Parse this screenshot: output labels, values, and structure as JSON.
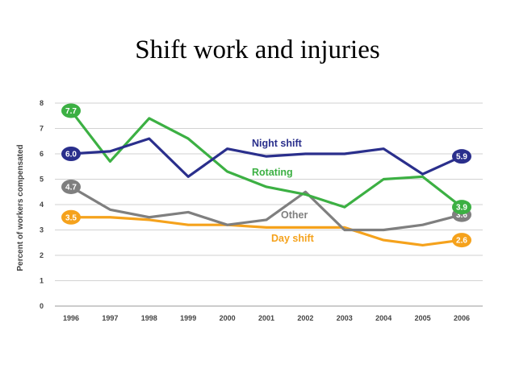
{
  "page": {
    "title": "Shift work and injuries"
  },
  "chart_data": {
    "type": "line",
    "title": "Shift work and injuries",
    "xlabel": "",
    "ylabel": "Percent of workers compensated",
    "ylim": [
      0,
      8
    ],
    "yticks": [
      "0",
      "1",
      "2",
      "3",
      "4",
      "5",
      "6",
      "7",
      "8"
    ],
    "categories": [
      "1996",
      "1997",
      "1998",
      "1999",
      "2000",
      "2001",
      "2002",
      "2003",
      "2004",
      "2005",
      "2006"
    ],
    "grid": true,
    "legend": "inline labels",
    "series": [
      {
        "name": "Night shift",
        "color": "#2a2f8c",
        "values": [
          6.0,
          6.1,
          6.6,
          5.1,
          6.2,
          5.9,
          6.0,
          6.0,
          6.2,
          5.2,
          5.9
        ],
        "start_label": "6.0",
        "end_label": "5.9"
      },
      {
        "name": "Rotating",
        "color": "#3cb043",
        "values": [
          7.7,
          5.7,
          7.4,
          6.6,
          5.3,
          4.7,
          4.4,
          3.9,
          5.0,
          5.1,
          3.9
        ],
        "start_label": "7.7",
        "end_label": "3.9"
      },
      {
        "name": "Other",
        "color": "#7f7f7f",
        "values": [
          4.7,
          3.8,
          3.5,
          3.7,
          3.2,
          3.4,
          4.5,
          3.0,
          3.0,
          3.2,
          3.6
        ],
        "start_label": "4.7",
        "end_label": "3.6"
      },
      {
        "name": "Day shift",
        "color": "#f5a21c",
        "values": [
          3.5,
          3.5,
          3.4,
          3.2,
          3.2,
          3.1,
          3.1,
          3.1,
          2.6,
          2.4,
          2.6
        ],
        "start_label": "3.5",
        "end_label": "2.6"
      }
    ]
  }
}
